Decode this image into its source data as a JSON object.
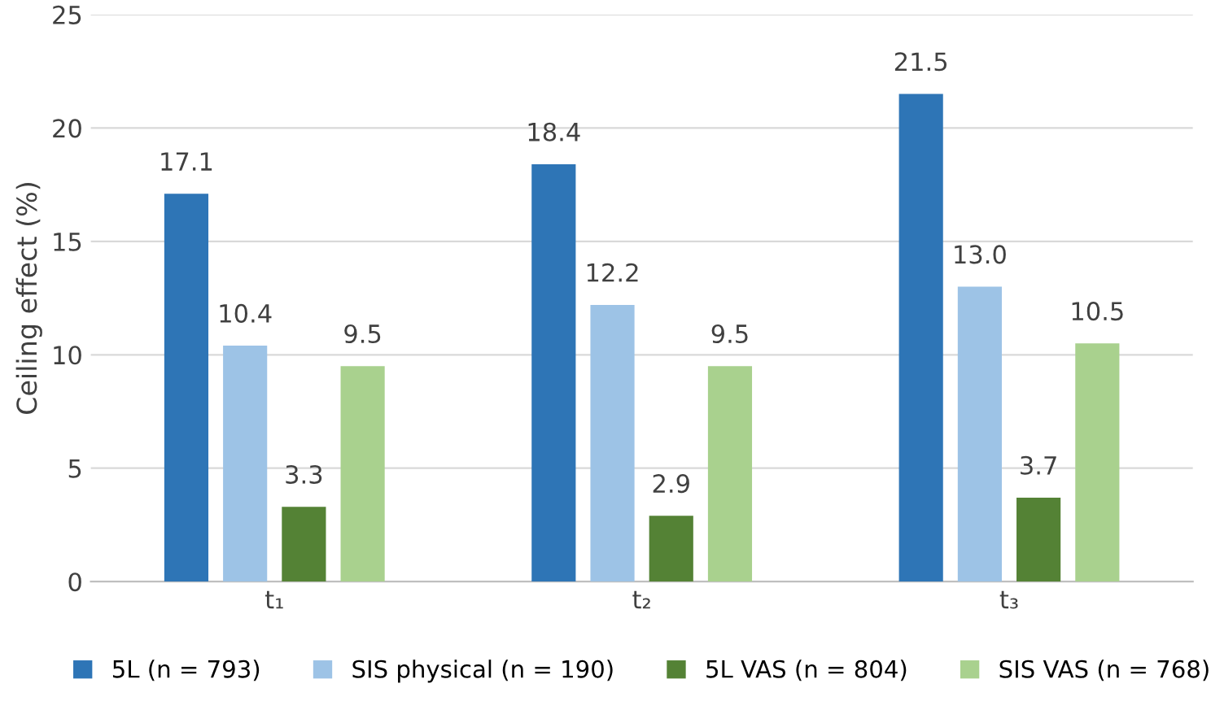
{
  "chart_data": {
    "type": "bar",
    "ylabel": "Ceiling effect (%)",
    "categories": [
      "t₁",
      "t₂",
      "t₃"
    ],
    "series": [
      {
        "name": "5L (n = 793)",
        "color": "#2e75b6",
        "values": [
          17.1,
          18.4,
          21.5
        ],
        "value_labels": [
          "17.1",
          "18.4",
          "21.5"
        ]
      },
      {
        "name": "SIS physical (n = 190)",
        "color": "#9dc3e6",
        "values": [
          10.4,
          12.2,
          13.0
        ],
        "value_labels": [
          "10.4",
          "12.2",
          "13.0"
        ]
      },
      {
        "name": "5L VAS (n = 804)",
        "color": "#548235",
        "values": [
          3.3,
          2.9,
          3.7
        ],
        "value_labels": [
          "3.3",
          "2.9",
          "3.7"
        ]
      },
      {
        "name": "SIS VAS (n = 768)",
        "color": "#a9d18e",
        "values": [
          9.5,
          9.5,
          10.5
        ],
        "value_labels": [
          "9.5",
          "9.5",
          "10.5"
        ]
      }
    ],
    "ylim": [
      0,
      25
    ],
    "yticks": [
      0,
      5,
      10,
      15,
      20,
      25
    ],
    "grid": "y",
    "legend": "bottom"
  }
}
